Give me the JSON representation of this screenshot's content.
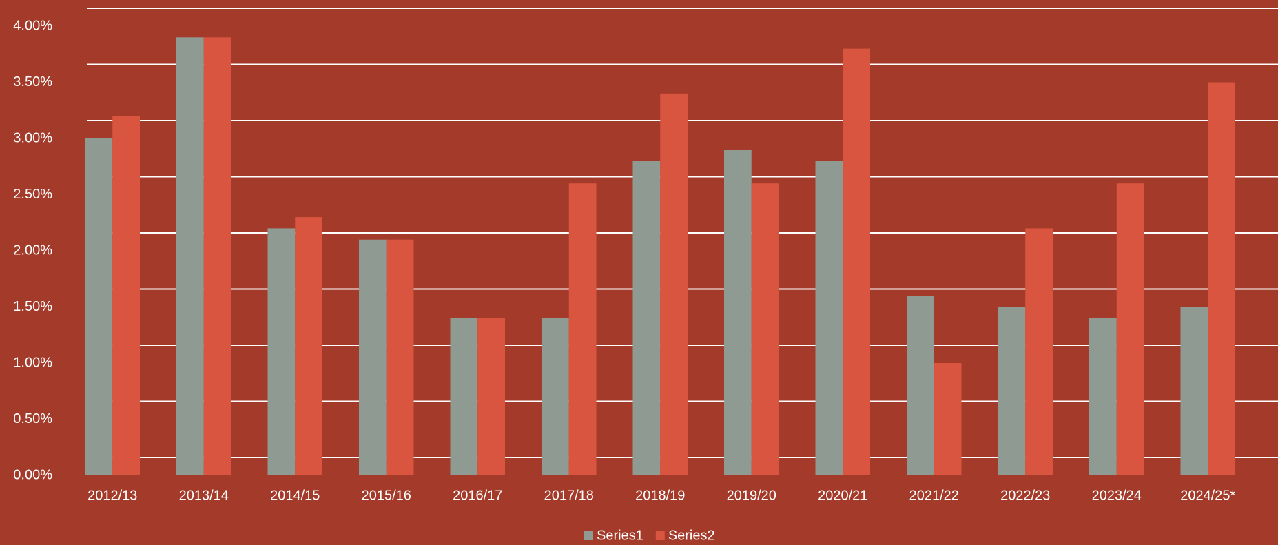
{
  "chart_data": {
    "type": "bar",
    "categories": [
      "2012/13",
      "2013/14",
      "2014/15",
      "2015/16",
      "2016/17",
      "2017/18",
      "2018/19",
      "2019/20",
      "2020/21",
      "2021/22",
      "2022/23",
      "2023/24",
      "2024/25*"
    ],
    "series": [
      {
        "name": "Series1",
        "color": "#8f9a93",
        "values": [
          3.0,
          3.9,
          2.2,
          2.1,
          1.4,
          1.4,
          2.8,
          2.9,
          2.8,
          1.6,
          1.5,
          1.4,
          1.5
        ]
      },
      {
        "name": "Series2",
        "color": "#d9553f",
        "values": [
          3.2,
          3.9,
          2.3,
          2.1,
          1.4,
          2.6,
          3.4,
          2.6,
          3.8,
          1.0,
          2.2,
          2.6,
          3.5
        ]
      }
    ],
    "ylim": [
      0,
      4
    ],
    "yticks": [
      {
        "value": 0,
        "label": "0.00%"
      },
      {
        "value": 0.5,
        "label": "0.50%"
      },
      {
        "value": 1,
        "label": "1.00%"
      },
      {
        "value": 1.5,
        "label": "1.50%"
      },
      {
        "value": 2,
        "label": "2.00%"
      },
      {
        "value": 2.5,
        "label": "2.50%"
      },
      {
        "value": 3,
        "label": "3.00%"
      },
      {
        "value": 3.5,
        "label": "3.50%"
      },
      {
        "value": 4,
        "label": "4.00%"
      }
    ],
    "grid": true,
    "legend": "bottom"
  }
}
